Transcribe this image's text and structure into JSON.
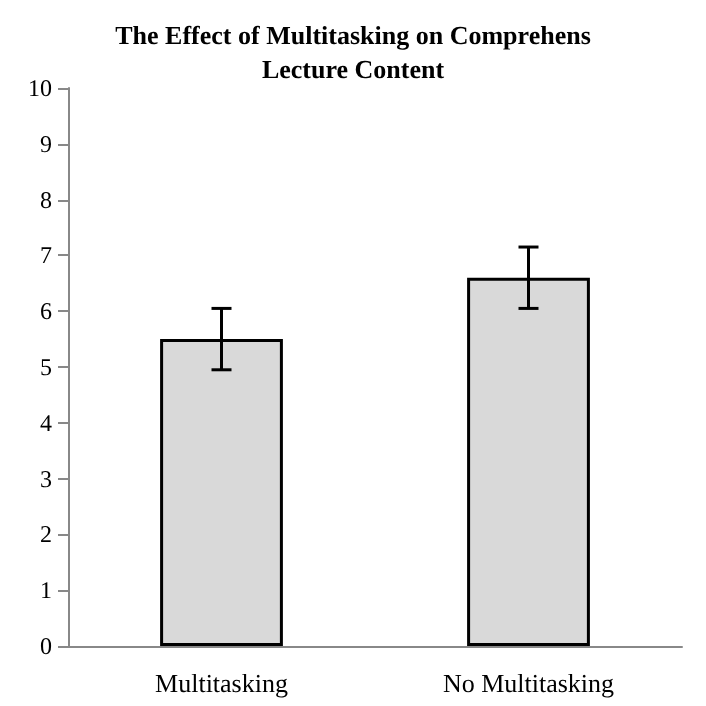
{
  "chart_data": {
    "type": "bar",
    "title": "The Effect of Multitasking on Comprehens\nLecture Content",
    "categories": [
      "Multitasking",
      "No Multitasking"
    ],
    "values": [
      5.5,
      6.6
    ],
    "errors": [
      0.55,
      0.55
    ],
    "color": "#d9d9d9",
    "ylim": [
      0,
      10
    ],
    "yticks": [
      0,
      1,
      2,
      3,
      4,
      5,
      6,
      7,
      8,
      9,
      10
    ],
    "grid": false
  }
}
